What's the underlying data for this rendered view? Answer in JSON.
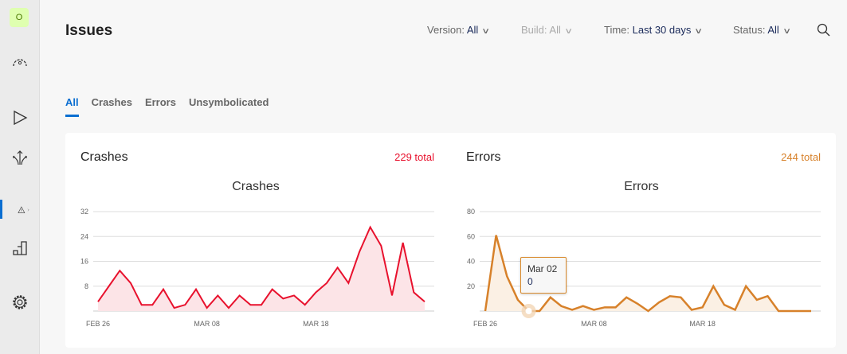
{
  "sidebar": {
    "avatar": "O",
    "items": [
      "dashboard-icon",
      "distribute-icon",
      "build-icon",
      "diagnostics-icon",
      "analytics-icon",
      "settings-icon"
    ]
  },
  "header": {
    "title": "Issues",
    "filters": [
      {
        "label": "Version: ",
        "value": "All",
        "disabled": false
      },
      {
        "label": "Build: ",
        "value": "All",
        "disabled": true
      },
      {
        "label": "Time: ",
        "value": "Last 30 days",
        "disabled": false
      },
      {
        "label": "Status: ",
        "value": "All",
        "disabled": false
      }
    ]
  },
  "tabs": [
    {
      "label": "All",
      "active": true
    },
    {
      "label": "Crashes"
    },
    {
      "label": "Errors"
    },
    {
      "label": "Unsymbolicated"
    }
  ],
  "panels": {
    "crashes": {
      "title": "Crashes",
      "total": "229 total",
      "color": "#e8112d"
    },
    "errors": {
      "title": "Errors",
      "total": "244 total",
      "color": "#d7812a"
    }
  },
  "tooltip": {
    "date": "Mar 02",
    "value": "0"
  },
  "chart_data": [
    {
      "type": "area",
      "title": "Crashes",
      "x_tick_labels": [
        "FEB 26",
        "MAR 08",
        "MAR 18"
      ],
      "y_ticks": [
        8,
        16,
        24,
        32
      ],
      "ylim": [
        0,
        32
      ],
      "grid": true,
      "color": "#e8112d",
      "values": [
        3,
        8,
        13,
        9,
        2,
        2,
        7,
        1,
        2,
        7,
        1,
        5,
        1,
        5,
        2,
        2,
        7,
        4,
        5,
        2,
        6,
        9,
        14,
        9,
        19,
        27,
        21,
        5,
        22,
        6,
        3
      ]
    },
    {
      "type": "area",
      "title": "Errors",
      "x_tick_labels": [
        "FEB 26",
        "MAR 08",
        "MAR 18"
      ],
      "y_ticks": [
        20,
        40,
        60,
        80
      ],
      "ylim": [
        0,
        80
      ],
      "grid": true,
      "color": "#d7812a",
      "values": [
        0,
        61,
        28,
        9,
        0,
        0,
        11,
        4,
        1,
        4,
        1,
        3,
        3,
        11,
        6,
        0,
        7,
        12,
        11,
        1,
        3,
        20,
        5,
        1,
        20,
        9,
        12,
        0,
        0,
        0,
        0
      ]
    }
  ]
}
